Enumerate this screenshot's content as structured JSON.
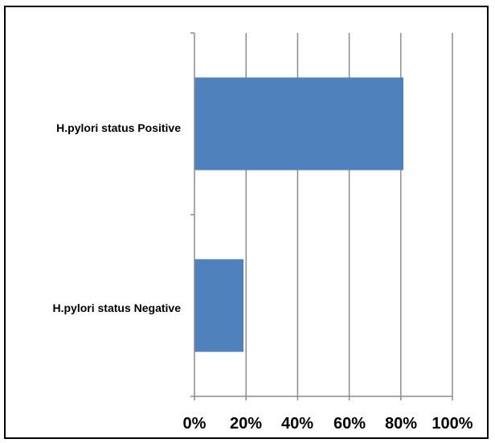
{
  "chart_data": {
    "type": "bar",
    "orientation": "horizontal",
    "categories": [
      "H.pylori status Positive",
      "H.pylori status Negative"
    ],
    "values": [
      81,
      19
    ],
    "xlim": [
      0,
      100
    ],
    "xticks": [
      "0%",
      "20%",
      "40%",
      "60%",
      "80%",
      "100%"
    ],
    "grid": "vertical",
    "bar_color": "#4F81BD",
    "grid_color": "#8C8C8C"
  }
}
